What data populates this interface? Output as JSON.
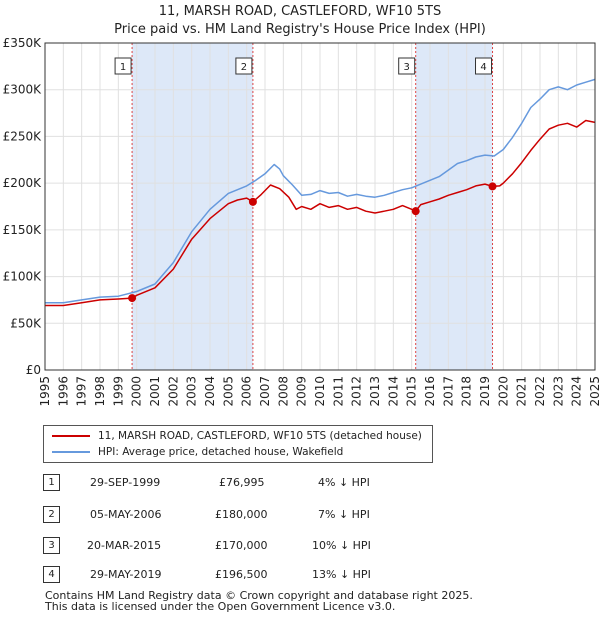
{
  "title_line1": "11, MARSH ROAD, CASTLEFORD, WF10 5TS",
  "title_line2": "Price paid vs. HM Land Registry's House Price Index (HPI)",
  "colors": {
    "price": "#cc0000",
    "hpi": "#6699dd",
    "shade": "#dde8f8",
    "grid": "#e0e0e0",
    "marker_line": "#dd4444"
  },
  "chart_data": {
    "type": "line",
    "title": "Price paid vs. HM Land Registry's House Price Index (HPI)",
    "xlim": [
      1995,
      2025
    ],
    "ylim": [
      0,
      350000
    ],
    "x_ticks": [
      "1995",
      "1996",
      "1997",
      "1998",
      "1999",
      "2000",
      "2001",
      "2002",
      "2003",
      "2004",
      "2005",
      "2006",
      "2007",
      "2008",
      "2009",
      "2010",
      "2011",
      "2012",
      "2013",
      "2014",
      "2015",
      "2016",
      "2017",
      "2018",
      "2019",
      "2020",
      "2021",
      "2022",
      "2023",
      "2024",
      "2025"
    ],
    "y_ticks": [
      {
        "value": 0,
        "label": "£0"
      },
      {
        "value": 50000,
        "label": "£50K"
      },
      {
        "value": 100000,
        "label": "£100K"
      },
      {
        "value": 150000,
        "label": "£150K"
      },
      {
        "value": 200000,
        "label": "£200K"
      },
      {
        "value": 250000,
        "label": "£250K"
      },
      {
        "value": 300000,
        "label": "£300K"
      },
      {
        "value": 350000,
        "label": "£350K"
      }
    ],
    "shaded_ranges": [
      [
        1999.75,
        2006.34
      ],
      [
        2015.22,
        2019.41
      ]
    ],
    "series": [
      {
        "name": "11, MARSH ROAD, CASTLEFORD, WF10 5TS (detached house)",
        "color": "#cc0000",
        "x": [
          1995,
          1996,
          1997,
          1998,
          1999,
          1999.75,
          2000,
          2001,
          2002,
          2003,
          2004,
          2005,
          2005.5,
          2006,
          2006.34,
          2006.8,
          2007.3,
          2007.8,
          2008.3,
          2008.7,
          2009,
          2009.5,
          2010,
          2010.5,
          2011,
          2011.5,
          2012,
          2012.5,
          2013,
          2013.5,
          2014,
          2014.5,
          2015,
          2015.22,
          2015.5,
          2016,
          2016.5,
          2017,
          2017.5,
          2018,
          2018.5,
          2019,
          2019.41,
          2019.8,
          2020,
          2020.5,
          2021,
          2021.5,
          2022,
          2022.5,
          2023,
          2023.5,
          2024,
          2024.5,
          2025
        ],
        "y": [
          69000,
          69000,
          72000,
          75000,
          76000,
          76995,
          80000,
          88000,
          108000,
          140000,
          162000,
          178000,
          182000,
          184000,
          180000,
          188000,
          198000,
          194000,
          185000,
          172000,
          175000,
          172000,
          178000,
          174000,
          176000,
          172000,
          174000,
          170000,
          168000,
          170000,
          172000,
          176000,
          172000,
          170000,
          177000,
          180000,
          183000,
          187000,
          190000,
          193000,
          197000,
          199000,
          196500,
          197000,
          200000,
          210000,
          222000,
          235000,
          247000,
          258000,
          262000,
          264000,
          260000,
          267000,
          265000
        ]
      },
      {
        "name": "HPI: Average price, detached house, Wakefield",
        "color": "#6699dd",
        "x": [
          1995,
          1996,
          1997,
          1998,
          1999,
          2000,
          2001,
          2002,
          2003,
          2004,
          2005,
          2005.5,
          2006,
          2006.5,
          2007,
          2007.5,
          2007.8,
          2008,
          2008.5,
          2009,
          2009.5,
          2010,
          2010.5,
          2011,
          2011.5,
          2012,
          2012.5,
          2013,
          2013.5,
          2014,
          2014.5,
          2015,
          2015.5,
          2016,
          2016.5,
          2017,
          2017.5,
          2018,
          2018.5,
          2019,
          2019.5,
          2020,
          2020.5,
          2021,
          2021.5,
          2022,
          2022.5,
          2023,
          2023.5,
          2024,
          2024.5,
          2025
        ],
        "y": [
          72000,
          72000,
          75000,
          78000,
          79000,
          84000,
          92000,
          115000,
          148000,
          172000,
          189000,
          193000,
          197000,
          203000,
          210000,
          220000,
          215000,
          208000,
          198000,
          187000,
          188000,
          192000,
          189000,
          190000,
          186000,
          188000,
          186000,
          185000,
          187000,
          190000,
          193000,
          195000,
          199000,
          203000,
          207000,
          214000,
          221000,
          224000,
          228000,
          230000,
          229000,
          236000,
          249000,
          264000,
          281000,
          290000,
          300000,
          303000,
          300000,
          305000,
          308000,
          311000
        ]
      }
    ],
    "transactions": [
      {
        "id": "1",
        "date": "29-SEP-1999",
        "price": "£76,995",
        "hpi_diff": "4% ↓ HPI",
        "x": 1999.75,
        "value": 76995
      },
      {
        "id": "2",
        "date": "05-MAY-2006",
        "price": "£180,000",
        "hpi_diff": "7% ↓ HPI",
        "x": 2006.34,
        "value": 180000
      },
      {
        "id": "3",
        "date": "20-MAR-2015",
        "price": "£170,000",
        "hpi_diff": "10% ↓ HPI",
        "x": 2015.22,
        "value": 170000
      },
      {
        "id": "4",
        "date": "29-MAY-2019",
        "price": "£196,500",
        "hpi_diff": "13% ↓ HPI",
        "x": 2019.41,
        "value": 196500
      }
    ]
  },
  "legend": {
    "price_label": "11, MARSH ROAD, CASTLEFORD, WF10 5TS (detached house)",
    "hpi_label": "HPI: Average price, detached house, Wakefield"
  },
  "footer": {
    "line1": "Contains HM Land Registry data © Crown copyright and database right 2025.",
    "line2": "This data is licensed under the Open Government Licence v3.0."
  }
}
